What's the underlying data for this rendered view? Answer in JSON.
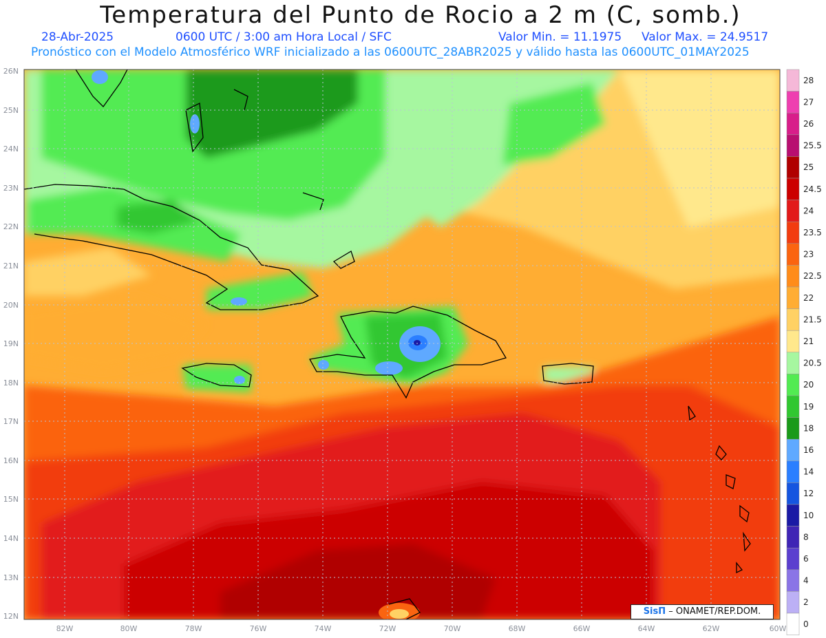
{
  "header": {
    "title": "Temperatura del Punto de Rocio a 2 m (C, somb.)",
    "date": "28-Abr-2025",
    "time": "0600 UTC / 3:00 am Hora Local / SFC",
    "min_label": "Valor Min. = 11.1975",
    "max_label": "Valor Max. = 24.9517",
    "forecast": "Pronóstico con el Modelo Atmosférico WRF inicializado a las 0600UTC_28ABR2025 y válido hasta las  0600UTC_01MAY2025"
  },
  "axes": {
    "lat_labels": [
      "26N",
      "25N",
      "24N",
      "23N",
      "22N",
      "21N",
      "20N",
      "19N",
      "18N",
      "17N",
      "16N",
      "15N",
      "14N",
      "13N",
      "12N"
    ],
    "lon_labels": [
      "82W",
      "80W",
      "78W",
      "76W",
      "74W",
      "72W",
      "70W",
      "68W",
      "66W",
      "64W",
      "62W",
      "60W"
    ]
  },
  "legend": {
    "labels": [
      "28",
      "27",
      "26",
      "25.5",
      "25",
      "24.5",
      "24",
      "23.5",
      "23",
      "22.5",
      "22",
      "21.5",
      "21",
      "20.5",
      "20",
      "19",
      "18",
      "16",
      "14",
      "12",
      "10",
      "8",
      "6",
      "4",
      "2",
      "0"
    ],
    "colors": [
      "#f5b8d8",
      "#ee3fb0",
      "#d81e8a",
      "#b80f70",
      "#b00000",
      "#cc0000",
      "#e21a1a",
      "#f23c10",
      "#fb6410",
      "#ff8c1a",
      "#ffad33",
      "#ffd164",
      "#ffe88c",
      "#a6f7a0",
      "#52eb52",
      "#30c730",
      "#1a9a1a",
      "#5fa9ff",
      "#2b7fff",
      "#1555e0",
      "#1a1aa5",
      "#3f25b5",
      "#5b3fcf",
      "#8a74e6",
      "#bcb0f5",
      "#ffffff"
    ]
  },
  "credit": {
    "brand": "SisΠ",
    "text": "– ONAMET/REP.DOM."
  }
}
